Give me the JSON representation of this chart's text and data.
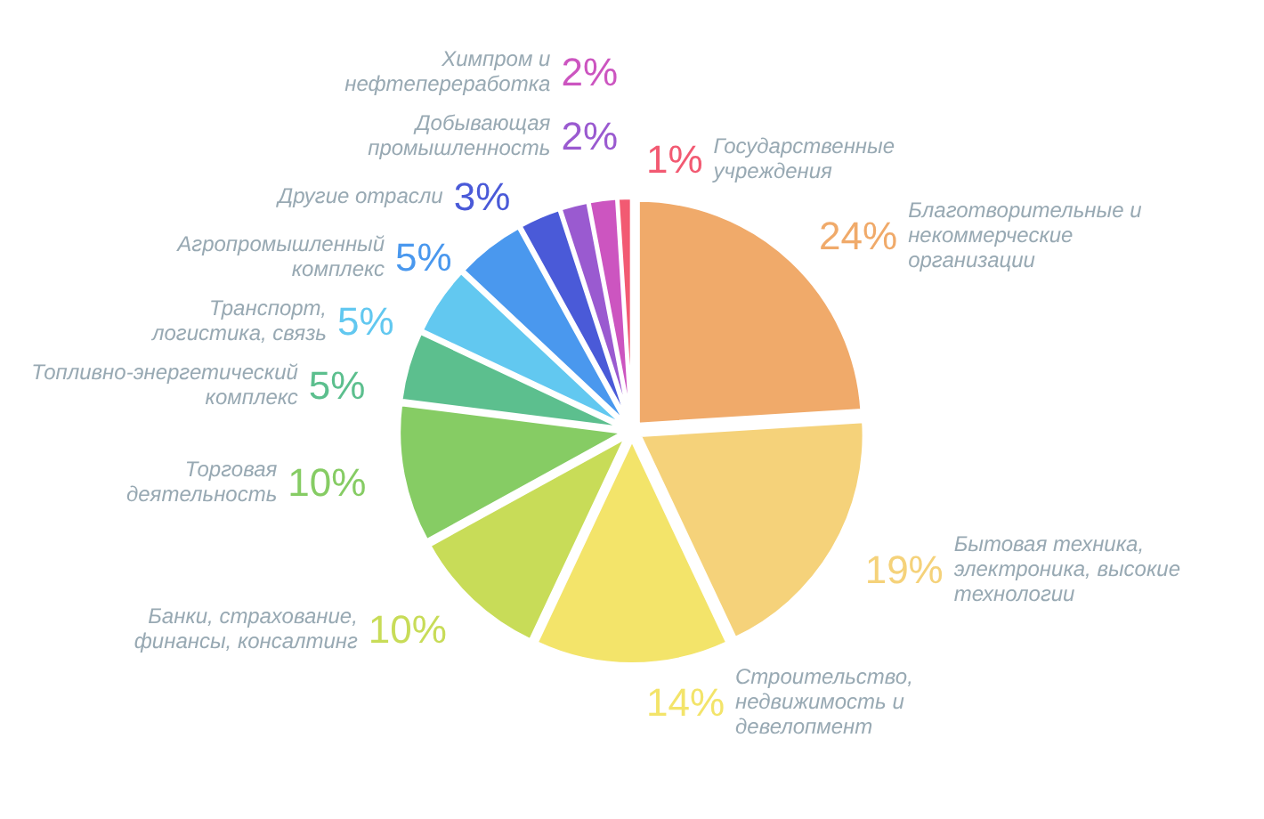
{
  "chart_data": {
    "type": "pie",
    "categories": [
      "Благотворительные и некоммерческие организации",
      "Бытовая техника, электроника, высокие технологии",
      "Строительство, недвижимость и девелопмент",
      "Банки, страхование, финансы, консалтинг",
      "Торговая деятельность",
      "Топливно-энергетический комплекс",
      "Транспорт, логистика, связь",
      "Агропромышленный комплекс",
      "Другие отрасли",
      "Добывающая промышленность",
      "Химпром и нефтепереработка",
      "Государственные учреждения"
    ],
    "values": [
      24,
      19,
      14,
      10,
      10,
      5,
      5,
      5,
      3,
      2,
      2,
      1
    ],
    "value_labels": [
      "24%",
      "19%",
      "14%",
      "10%",
      "10%",
      "5%",
      "5%",
      "5%",
      "3%",
      "2%",
      "2%",
      "1%"
    ],
    "colors": [
      "#f0aa6a",
      "#f5d27a",
      "#f3e46a",
      "#c8dc58",
      "#86cc64",
      "#5cbf8e",
      "#62c8f0",
      "#4a98ee",
      "#4a5ad8",
      "#9a5ad0",
      "#cc55c0",
      "#f25a72"
    ]
  }
}
